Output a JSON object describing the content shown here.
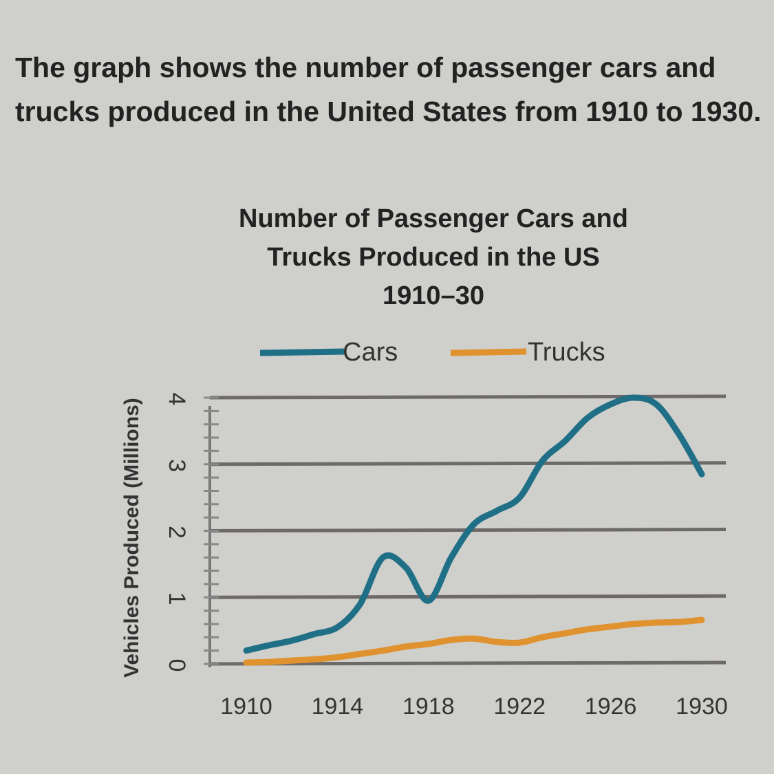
{
  "question": "The graph shows the number of passenger cars and trucks produced in the United States from 1910 to 1930.",
  "chart_data": {
    "type": "line",
    "title_lines": [
      "Number of Passenger Cars and",
      "Trucks Produced in the US",
      "1910–30"
    ],
    "xlabel": "",
    "ylabel": "Vehicles Produced (Millions)",
    "x": [
      1910,
      1911,
      1912,
      1913,
      1914,
      1915,
      1916,
      1917,
      1918,
      1919,
      1920,
      1921,
      1922,
      1923,
      1924,
      1925,
      1926,
      1927,
      1928,
      1929,
      1930
    ],
    "xticks": [
      "1910",
      "1914",
      "1918",
      "1922",
      "1926",
      "1930"
    ],
    "xlim": [
      1910,
      1930
    ],
    "yticks": [
      "0",
      "1",
      "2",
      "3",
      "4"
    ],
    "ylim": [
      0,
      4
    ],
    "grid": true,
    "legend_position": "top",
    "series": [
      {
        "name": "Cars",
        "color": "#1f6f86",
        "values": [
          0.2,
          0.28,
          0.35,
          0.45,
          0.55,
          0.9,
          1.6,
          1.45,
          0.95,
          1.6,
          2.1,
          2.3,
          2.5,
          3.05,
          3.35,
          3.7,
          3.9,
          4.0,
          3.9,
          3.45,
          2.85
        ]
      },
      {
        "name": "Trucks",
        "color": "#e0922e",
        "values": [
          0.02,
          0.03,
          0.05,
          0.07,
          0.1,
          0.15,
          0.2,
          0.26,
          0.3,
          0.36,
          0.38,
          0.33,
          0.32,
          0.4,
          0.46,
          0.52,
          0.56,
          0.6,
          0.62,
          0.63,
          0.66
        ]
      }
    ]
  }
}
